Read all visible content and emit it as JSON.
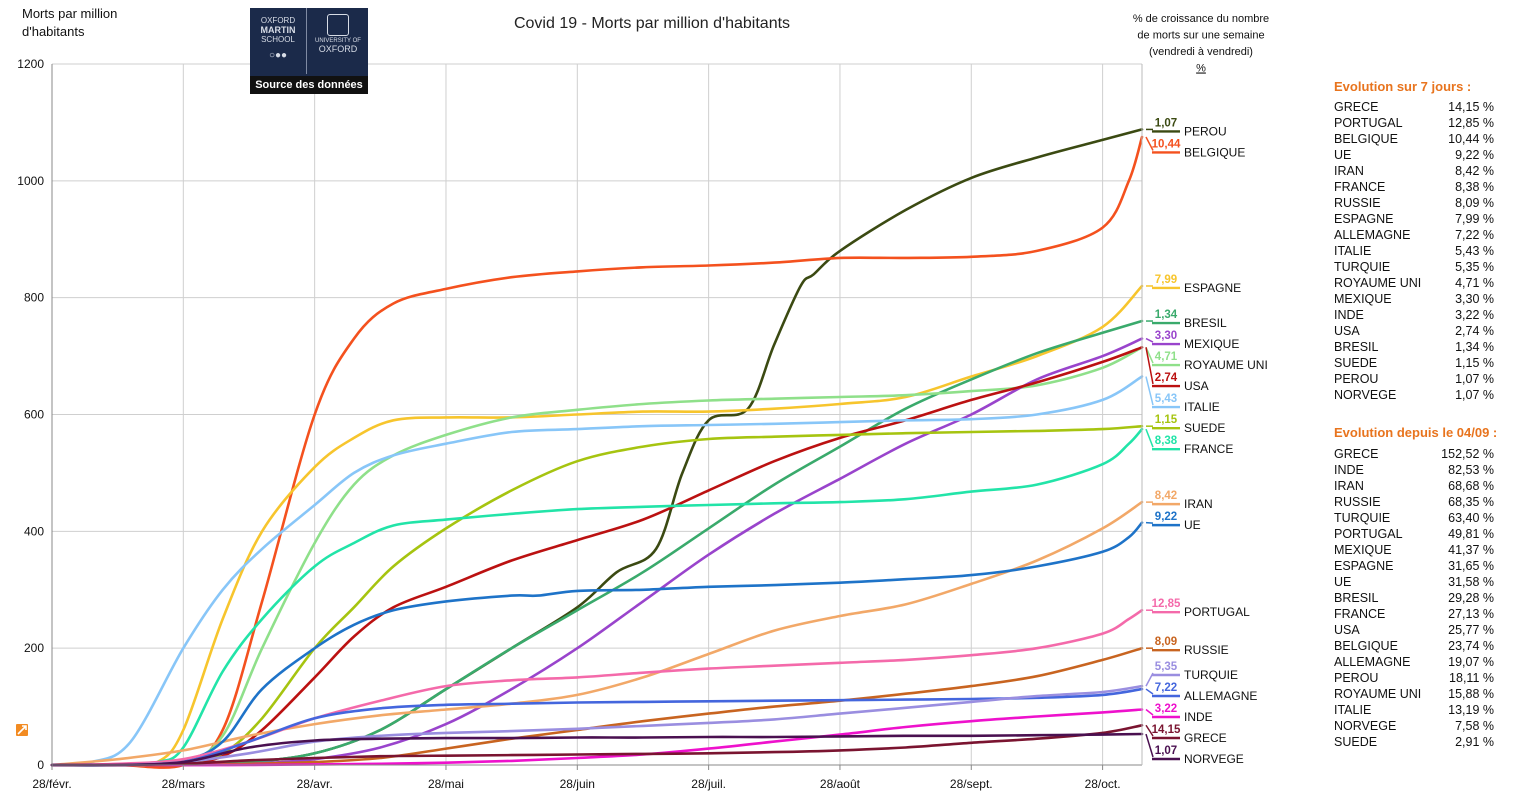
{
  "chart_data": {
    "type": "line",
    "title": "Covid 19 - Morts par million d'habitants",
    "ylabel": "Morts par million d'habitants",
    "xlabel": "",
    "ylim": [
      0,
      1200
    ],
    "yticks": [
      0,
      200,
      400,
      600,
      800,
      1000,
      1200
    ],
    "x_axis": [
      "28/févr.",
      "28/mars",
      "28/avr.",
      "28/mai",
      "28/juin",
      "28/juil.",
      "28/août",
      "28/sept.",
      "28/oct."
    ],
    "x_end": 8.3,
    "growth_header": [
      "% de croissance du nombre",
      "de morts sur une semaine",
      "(vendredi à vendredi)",
      "%"
    ],
    "series": [
      {
        "name": "PEROU",
        "growth": "1,07",
        "color": "#3b4a12",
        "x": [
          0,
          0.5,
          1,
          1.5,
          2,
          2.5,
          3,
          3.5,
          4,
          4.3,
          4.6,
          4.8,
          5,
          5.3,
          5.5,
          5.7,
          5.8,
          6,
          6.5,
          7,
          7.5,
          8,
          8.3
        ],
        "y": [
          0,
          0,
          0,
          5,
          20,
          60,
          130,
          200,
          270,
          330,
          370,
          500,
          590,
          610,
          720,
          820,
          840,
          880,
          950,
          1005,
          1040,
          1070,
          1088
        ]
      },
      {
        "name": "BELGIQUE",
        "growth": "10,44",
        "color": "#f4511e",
        "x": [
          0,
          0.5,
          1,
          1.3,
          1.6,
          2,
          2.3,
          2.6,
          3,
          3.5,
          4,
          4.5,
          5,
          5.5,
          6,
          6.5,
          7,
          7.5,
          8,
          8.2,
          8.3
        ],
        "y": [
          0,
          0,
          0,
          60,
          280,
          600,
          730,
          790,
          815,
          835,
          845,
          852,
          855,
          860,
          868,
          868,
          870,
          880,
          920,
          1000,
          1075
        ]
      },
      {
        "name": "ESPAGNE",
        "growth": "7,99",
        "color": "#f7c52d",
        "x": [
          0,
          0.5,
          0.8,
          1,
          1.3,
          1.6,
          2,
          2.3,
          2.6,
          3,
          3.5,
          4,
          4.5,
          5,
          5.5,
          6,
          6.5,
          7,
          7.5,
          8,
          8.3
        ],
        "y": [
          0,
          0,
          5,
          60,
          250,
          400,
          510,
          560,
          590,
          595,
          595,
          600,
          605,
          605,
          610,
          618,
          630,
          665,
          700,
          750,
          820
        ]
      },
      {
        "name": "BRESIL",
        "growth": "1,34",
        "color": "#3aaa6c",
        "x": [
          0,
          0.5,
          1,
          1.5,
          2,
          2.5,
          3,
          3.5,
          4,
          4.5,
          5,
          5.5,
          6,
          6.5,
          7,
          7.5,
          8,
          8.3
        ],
        "y": [
          0,
          0,
          0,
          5,
          20,
          60,
          130,
          200,
          265,
          330,
          405,
          480,
          545,
          610,
          660,
          705,
          740,
          760
        ]
      },
      {
        "name": "ROYAUME UNI",
        "growth": "4,71",
        "color": "#8fe08a",
        "x": [
          0,
          0.5,
          1,
          1.3,
          1.6,
          2,
          2.3,
          2.6,
          3,
          3.5,
          4,
          4.5,
          5,
          5.5,
          6,
          6.5,
          7,
          7.5,
          8,
          8.3
        ],
        "y": [
          0,
          0,
          5,
          50,
          200,
          380,
          480,
          530,
          565,
          595,
          608,
          618,
          624,
          627,
          630,
          633,
          640,
          650,
          680,
          715
        ]
      },
      {
        "name": "MEXIQUE",
        "growth": "3,30",
        "color": "#9944cc",
        "x": [
          0,
          0.5,
          1,
          1.5,
          2,
          2.5,
          3,
          3.5,
          4,
          4.5,
          5,
          5.5,
          6,
          6.5,
          7,
          7.5,
          8,
          8.3
        ],
        "y": [
          0,
          0,
          0,
          2,
          10,
          30,
          70,
          130,
          200,
          280,
          360,
          430,
          490,
          550,
          600,
          660,
          700,
          730
        ]
      },
      {
        "name": "USA",
        "growth": "2,74",
        "color": "#bb1111",
        "x": [
          0,
          0.5,
          1,
          1.3,
          1.6,
          2,
          2.3,
          2.6,
          3,
          3.5,
          4,
          4.5,
          5,
          5.5,
          6,
          6.5,
          7,
          7.5,
          8,
          8.3
        ],
        "y": [
          0,
          0,
          2,
          15,
          60,
          150,
          220,
          270,
          305,
          350,
          385,
          420,
          470,
          520,
          560,
          590,
          625,
          655,
          690,
          715
        ]
      },
      {
        "name": "ITALIE",
        "growth": "5,43",
        "color": "#88c6f8",
        "x": [
          0,
          0.3,
          0.6,
          1,
          1.3,
          1.6,
          2,
          2.3,
          2.6,
          3,
          3.5,
          4,
          4.5,
          5,
          5.5,
          6,
          6.5,
          7,
          7.5,
          8,
          8.3
        ],
        "y": [
          0,
          5,
          40,
          200,
          300,
          370,
          445,
          500,
          530,
          550,
          570,
          575,
          580,
          582,
          584,
          587,
          590,
          592,
          600,
          625,
          665
        ]
      },
      {
        "name": "SUEDE",
        "growth": "1,15",
        "color": "#a6c410",
        "x": [
          0,
          0.5,
          1,
          1.3,
          1.6,
          2,
          2.3,
          2.6,
          3,
          3.5,
          4,
          4.5,
          5,
          5.5,
          6,
          6.5,
          7,
          7.5,
          8,
          8.3
        ],
        "y": [
          0,
          0,
          5,
          20,
          80,
          200,
          270,
          340,
          405,
          470,
          520,
          545,
          558,
          562,
          565,
          568,
          570,
          572,
          575,
          580
        ]
      },
      {
        "name": "FRANCE",
        "growth": "8,38",
        "color": "#22e4a8",
        "x": [
          0,
          0.5,
          0.8,
          1,
          1.3,
          1.6,
          2,
          2.3,
          2.6,
          3,
          3.5,
          4,
          4.5,
          5,
          5.5,
          6,
          6.5,
          7,
          7.5,
          8,
          8.2,
          8.3
        ],
        "y": [
          0,
          0,
          5,
          30,
          160,
          250,
          340,
          380,
          410,
          420,
          430,
          438,
          442,
          445,
          448,
          450,
          455,
          468,
          480,
          515,
          550,
          575
        ]
      },
      {
        "name": "IRAN",
        "growth": "8,42",
        "color": "#f2a868",
        "x": [
          0,
          0.5,
          1,
          1.5,
          2,
          2.5,
          3,
          3.5,
          4,
          4.5,
          5,
          5.5,
          6,
          6.5,
          7,
          7.5,
          8,
          8.3
        ],
        "y": [
          0,
          10,
          25,
          50,
          70,
          85,
          95,
          105,
          120,
          150,
          190,
          230,
          255,
          275,
          310,
          350,
          405,
          450
        ]
      },
      {
        "name": "UE",
        "growth": "9,22",
        "color": "#1e73c8",
        "x": [
          0,
          0.5,
          1,
          1.3,
          1.6,
          2,
          2.3,
          2.6,
          3,
          3.5,
          3.7,
          4,
          4.5,
          5,
          5.5,
          6,
          6.5,
          7,
          7.5,
          8,
          8.2,
          8.3
        ],
        "y": [
          0,
          0,
          8,
          40,
          130,
          200,
          240,
          265,
          280,
          290,
          290,
          298,
          300,
          305,
          308,
          312,
          318,
          325,
          340,
          365,
          390,
          415
        ]
      },
      {
        "name": "PORTUGAL",
        "growth": "12,85",
        "color": "#f46aaa",
        "x": [
          0,
          0.5,
          1,
          1.5,
          2,
          2.5,
          3,
          3.5,
          4,
          4.5,
          5,
          5.5,
          6,
          6.5,
          7,
          7.5,
          8,
          8.2,
          8.3
        ],
        "y": [
          0,
          2,
          10,
          40,
          80,
          110,
          135,
          145,
          150,
          158,
          165,
          170,
          175,
          180,
          188,
          200,
          225,
          250,
          265
        ]
      },
      {
        "name": "RUSSIE",
        "growth": "8,09",
        "color": "#c86420",
        "x": [
          0,
          1,
          1.5,
          2,
          2.5,
          3,
          3.5,
          4,
          4.5,
          5,
          5.5,
          6,
          6.5,
          7,
          7.5,
          8,
          8.3
        ],
        "y": [
          0,
          0,
          2,
          5,
          12,
          28,
          45,
          60,
          75,
          88,
          100,
          110,
          122,
          135,
          152,
          180,
          200
        ]
      },
      {
        "name": "ALLEMAGNE",
        "growth": "7,22",
        "color": "#4466dd",
        "x": [
          0,
          0.5,
          1,
          1.5,
          2,
          2.5,
          3,
          3.5,
          4,
          4.5,
          5,
          5.5,
          6,
          6.5,
          7,
          7.5,
          8,
          8.3
        ],
        "y": [
          0,
          0,
          5,
          40,
          80,
          97,
          103,
          105,
          107,
          108,
          109,
          110,
          111,
          112,
          113,
          115,
          120,
          130
        ]
      },
      {
        "name": "TURQUIE",
        "growth": "5,35",
        "color": "#9a8ee0",
        "x": [
          0,
          0.5,
          1,
          1.5,
          2,
          2.5,
          3,
          3.5,
          4,
          4.5,
          5,
          5.5,
          6,
          6.5,
          7,
          7.5,
          8,
          8.3
        ],
        "y": [
          0,
          0,
          5,
          20,
          40,
          50,
          55,
          58,
          62,
          67,
          72,
          78,
          88,
          98,
          108,
          118,
          125,
          135
        ]
      },
      {
        "name": "INDE",
        "growth": "3,22",
        "color": "#ee11cc",
        "x": [
          0,
          0.5,
          1,
          1.5,
          2,
          2.5,
          3,
          3.5,
          4,
          4.5,
          5,
          5.5,
          6,
          6.5,
          7,
          7.5,
          8,
          8.3
        ],
        "y": [
          0,
          0,
          0,
          0,
          1,
          2,
          4,
          7,
          12,
          18,
          28,
          40,
          52,
          65,
          75,
          83,
          90,
          95
        ]
      },
      {
        "name": "GRECE",
        "growth": "14,15",
        "color": "#7a1430",
        "x": [
          0,
          0.5,
          1,
          1.5,
          2,
          2.5,
          3,
          3.5,
          4,
          4.5,
          5,
          5.5,
          6,
          6.5,
          7,
          7.5,
          8,
          8.3
        ],
        "y": [
          0,
          0,
          2,
          8,
          12,
          15,
          16,
          17,
          18,
          19,
          20,
          22,
          25,
          30,
          38,
          45,
          55,
          68
        ]
      },
      {
        "name": "NORVEGE",
        "growth": "1,07",
        "color": "#4a1050",
        "x": [
          0,
          0.5,
          1,
          1.5,
          2,
          2.5,
          3,
          3.5,
          4,
          4.5,
          5,
          5.5,
          6,
          6.5,
          7,
          7.5,
          8,
          8.3
        ],
        "y": [
          0,
          0,
          5,
          30,
          42,
          45,
          46,
          46,
          47,
          47,
          48,
          48,
          49,
          50,
          50,
          51,
          52,
          53
        ]
      }
    ]
  },
  "logo": {
    "line1": "OXFORD",
    "line2": "MARTIN",
    "line3": "SCHOOL",
    "line4": "UNIVERSITY OF",
    "line5": "OXFORD",
    "caption": "Source des données"
  },
  "table7": {
    "title": "Evolution sur 7 jours :",
    "rows": [
      {
        "country": "GRECE",
        "value": "14,15 %"
      },
      {
        "country": "PORTUGAL",
        "value": "12,85 %"
      },
      {
        "country": "BELGIQUE",
        "value": "10,44 %"
      },
      {
        "country": "UE",
        "value": "9,22 %"
      },
      {
        "country": "IRAN",
        "value": "8,42 %"
      },
      {
        "country": "FRANCE",
        "value": "8,38 %"
      },
      {
        "country": "RUSSIE",
        "value": "8,09 %"
      },
      {
        "country": "ESPAGNE",
        "value": "7,99 %"
      },
      {
        "country": "ALLEMAGNE",
        "value": "7,22 %"
      },
      {
        "country": "ITALIE",
        "value": "5,43 %"
      },
      {
        "country": "TURQUIE",
        "value": "5,35 %"
      },
      {
        "country": "ROYAUME UNI",
        "value": "4,71 %"
      },
      {
        "country": "MEXIQUE",
        "value": "3,30 %"
      },
      {
        "country": "INDE",
        "value": "3,22 %"
      },
      {
        "country": "USA",
        "value": "2,74 %"
      },
      {
        "country": "BRESIL",
        "value": "1,34 %"
      },
      {
        "country": "SUEDE",
        "value": "1,15 %"
      },
      {
        "country": "PEROU",
        "value": "1,07 %"
      },
      {
        "country": "NORVEGE",
        "value": "1,07 %"
      }
    ]
  },
  "tableSince": {
    "title": "Evolution depuis le 04/09 :",
    "rows": [
      {
        "country": "GRECE",
        "value": "152,52 %"
      },
      {
        "country": "INDE",
        "value": "82,53 %"
      },
      {
        "country": "IRAN",
        "value": "68,68 %"
      },
      {
        "country": "RUSSIE",
        "value": "68,35 %"
      },
      {
        "country": "TURQUIE",
        "value": "63,40 %"
      },
      {
        "country": "PORTUGAL",
        "value": "49,81 %"
      },
      {
        "country": "MEXIQUE",
        "value": "41,37 %"
      },
      {
        "country": "ESPAGNE",
        "value": "31,65 %"
      },
      {
        "country": "UE",
        "value": "31,58 %"
      },
      {
        "country": "BRESIL",
        "value": "29,28 %"
      },
      {
        "country": "FRANCE",
        "value": "27,13 %"
      },
      {
        "country": "USA",
        "value": "25,77 %"
      },
      {
        "country": "BELGIQUE",
        "value": "23,74 %"
      },
      {
        "country": "ALLEMAGNE",
        "value": "19,07 %"
      },
      {
        "country": "PEROU",
        "value": "18,11 %"
      },
      {
        "country": "ROYAUME UNI",
        "value": "15,88 %"
      },
      {
        "country": "ITALIE",
        "value": "13,19 %"
      },
      {
        "country": "NORVEGE",
        "value": "7,58 %"
      },
      {
        "country": "SUEDE",
        "value": "2,91 %"
      }
    ]
  }
}
